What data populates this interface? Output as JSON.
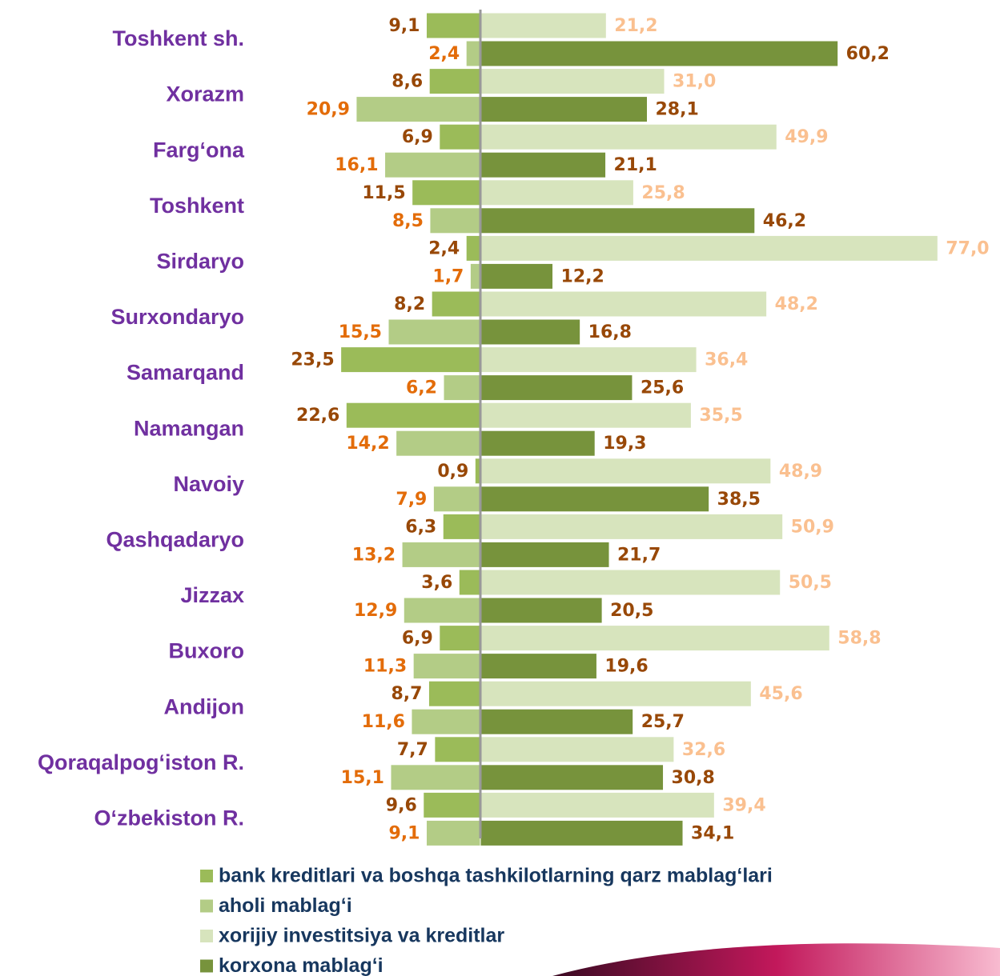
{
  "chart_data": {
    "type": "butterfly-bar",
    "categories": [
      "Toshkent sh.",
      "Xorazm",
      "Farg‘ona",
      "Toshkent",
      "Sirdaryo",
      "Surxondaryo",
      "Samarqand",
      "Namangan",
      "Navoiy",
      "Qashqadaryo",
      "Jizzax",
      "Buxoro",
      "Andijon",
      "Qoraqalpog‘iston R.",
      "O‘zbekiston R."
    ],
    "series": [
      {
        "name": "bank kreditlari va boshqa tashkilotlarning qarz mablag‘lari",
        "color": "#9bbb59",
        "label_color": "#984807",
        "values": [
          9.1,
          8.6,
          6.9,
          11.5,
          2.4,
          8.2,
          23.5,
          22.6,
          0.9,
          6.3,
          3.6,
          6.9,
          8.7,
          7.7,
          9.6
        ],
        "value_labels": [
          "9,1",
          "8,6",
          "6,9",
          "11,5",
          "2,4",
          "8,2",
          "23,5",
          "22,6",
          "0,9",
          "6,3",
          "3,6",
          "6,9",
          "8,7",
          "7,7",
          "9,6"
        ]
      },
      {
        "name": "aholi mablag‘i",
        "color": "#b3cc86",
        "label_color": "#e36c09",
        "values": [
          2.4,
          20.9,
          16.1,
          8.5,
          1.7,
          15.5,
          6.2,
          14.2,
          7.9,
          13.2,
          12.9,
          11.3,
          11.6,
          15.1,
          9.1
        ],
        "value_labels": [
          "2,4",
          "20,9",
          "16,1",
          "8,5",
          "1,7",
          "15,5",
          "6,2",
          "14,2",
          "7,9",
          "13,2",
          "12,9",
          "11,3",
          "11,6",
          "15,1",
          "9,1"
        ]
      },
      {
        "name": "xorijiy investitsiya va kreditlar",
        "color": "#d7e4bd",
        "label_color": "#fac090",
        "values": [
          21.2,
          31.0,
          49.9,
          25.8,
          77.0,
          48.2,
          36.4,
          35.5,
          48.9,
          50.9,
          50.5,
          58.8,
          45.6,
          32.6,
          39.4
        ],
        "value_labels": [
          "21,2",
          "31,0",
          "49,9",
          "25,8",
          "77,0",
          "48,2",
          "36,4",
          "35,5",
          "48,9",
          "50,9",
          "50,5",
          "58,8",
          "45,6",
          "32,6",
          "39,4"
        ]
      },
      {
        "name": "korxona mablag‘i",
        "color": "#77933c",
        "label_color": "#984807",
        "values": [
          60.2,
          28.1,
          21.1,
          46.2,
          12.2,
          16.8,
          25.6,
          19.3,
          38.5,
          21.7,
          20.5,
          19.6,
          25.7,
          30.8,
          34.1
        ],
        "value_labels": [
          "60,2",
          "28,1",
          "21,1",
          "46,2",
          "12,2",
          "16,8",
          "25,6",
          "19,3",
          "38,5",
          "21,7",
          "20,5",
          "19,6",
          "25,7",
          "30,8",
          "34,1"
        ]
      }
    ]
  }
}
